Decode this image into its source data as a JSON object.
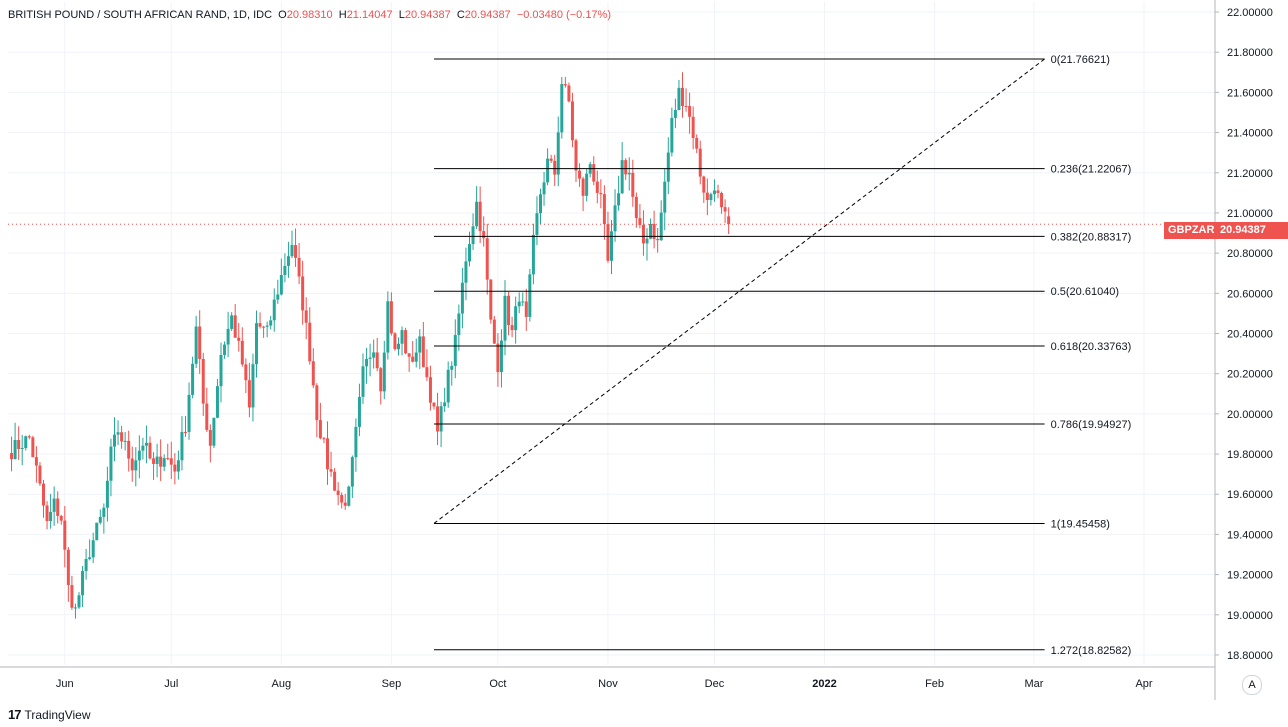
{
  "legend": {
    "symbol": "BRITISH POUND / SOUTH AFRICAN RAND, 1D, IDC",
    "o_label": "O",
    "o": "20.98310",
    "h_label": "H",
    "h": "21.14047",
    "l_label": "L",
    "l": "20.94387",
    "c_label": "C",
    "c": "20.94387",
    "change": "−0.03480 (−0.17%)"
  },
  "price_tag": {
    "ticker": "GBPZAR",
    "price": "20.94387"
  },
  "branding": {
    "logo_text": "TradingView",
    "logo_mark": "17"
  },
  "auto_scale_button": "A",
  "colors": {
    "up": "#26a69a",
    "down": "#ef5350",
    "grid": "#f0f3fa",
    "fib_line": "#000000"
  },
  "chart_data": {
    "type": "candlestick",
    "ylim": [
      18.75,
      22.05
    ],
    "y_ticks": [
      "22.00000",
      "21.80000",
      "21.60000",
      "21.40000",
      "21.20000",
      "21.00000",
      "20.80000",
      "20.60000",
      "20.40000",
      "20.20000",
      "20.00000",
      "19.80000",
      "19.60000",
      "19.40000",
      "19.20000",
      "19.00000",
      "18.80000"
    ],
    "x_ticks": [
      {
        "label": "Jun",
        "day": 31
      },
      {
        "label": "Jul",
        "day": 61
      },
      {
        "label": "Aug",
        "day": 92
      },
      {
        "label": "Sep",
        "day": 123
      },
      {
        "label": "Oct",
        "day": 153
      },
      {
        "label": "Nov",
        "day": 184
      },
      {
        "label": "Dec",
        "day": 214
      },
      {
        "label": "2022",
        "day": 245
      },
      {
        "label": "Feb",
        "day": 276
      },
      {
        "label": "Mar",
        "day": 304
      },
      {
        "label": "Apr",
        "day": 335
      }
    ],
    "x_domain": [
      15,
      355
    ],
    "fib_retracement": {
      "start": {
        "day": 135,
        "value": 19.45458
      },
      "end": {
        "day": 307,
        "value": 21.76621
      },
      "levels": [
        {
          "label": "0(21.76621)",
          "value": 21.76621
        },
        {
          "label": "0.236(21.22067)",
          "value": 21.22067
        },
        {
          "label": "0.382(20.88317)",
          "value": 20.88317
        },
        {
          "label": "0.5(20.61040)",
          "value": 20.6104
        },
        {
          "label": "0.618(20.33763)",
          "value": 20.33763
        },
        {
          "label": "0.786(19.94927)",
          "value": 19.94927
        },
        {
          "label": "1(19.45458)",
          "value": 19.45458
        },
        {
          "label": "1.272(18.82582)",
          "value": 18.82582
        }
      ]
    },
    "anchors": [
      {
        "day": 16,
        "close": 19.82
      },
      {
        "day": 21,
        "close": 19.88
      },
      {
        "day": 23,
        "close": 19.72
      },
      {
        "day": 26,
        "close": 19.45
      },
      {
        "day": 28,
        "close": 19.55
      },
      {
        "day": 30,
        "close": 19.48
      },
      {
        "day": 32,
        "close": 19.13
      },
      {
        "day": 34,
        "close": 19.02
      },
      {
        "day": 36,
        "close": 19.18
      },
      {
        "day": 38,
        "close": 19.32
      },
      {
        "day": 42,
        "close": 19.52
      },
      {
        "day": 44,
        "close": 19.8
      },
      {
        "day": 46,
        "close": 19.92
      },
      {
        "day": 50,
        "close": 19.75
      },
      {
        "day": 53,
        "close": 19.86
      },
      {
        "day": 56,
        "close": 19.73
      },
      {
        "day": 59,
        "close": 19.8
      },
      {
        "day": 62,
        "close": 19.72
      },
      {
        "day": 65,
        "close": 19.95
      },
      {
        "day": 68,
        "close": 20.42
      },
      {
        "day": 70,
        "close": 20.05
      },
      {
        "day": 72,
        "close": 19.85
      },
      {
        "day": 75,
        "close": 20.3
      },
      {
        "day": 78,
        "close": 20.48
      },
      {
        "day": 81,
        "close": 20.25
      },
      {
        "day": 83,
        "close": 20.02
      },
      {
        "day": 85,
        "close": 20.45
      },
      {
        "day": 88,
        "close": 20.4
      },
      {
        "day": 90,
        "close": 20.55
      },
      {
        "day": 93,
        "close": 20.75
      },
      {
        "day": 95,
        "close": 20.85
      },
      {
        "day": 98,
        "close": 20.55
      },
      {
        "day": 100,
        "close": 20.3
      },
      {
        "day": 102,
        "close": 20.0
      },
      {
        "day": 105,
        "close": 19.75
      },
      {
        "day": 107,
        "close": 19.65
      },
      {
        "day": 109,
        "close": 19.55
      },
      {
        "day": 111,
        "close": 19.6
      },
      {
        "day": 113,
        "close": 19.9
      },
      {
        "day": 115,
        "close": 20.2
      },
      {
        "day": 118,
        "close": 20.35
      },
      {
        "day": 120,
        "close": 20.15
      },
      {
        "day": 122,
        "close": 20.55
      },
      {
        "day": 124,
        "close": 20.3
      },
      {
        "day": 126,
        "close": 20.4
      },
      {
        "day": 128,
        "close": 20.25
      },
      {
        "day": 131,
        "close": 20.35
      },
      {
        "day": 134,
        "close": 20.1
      },
      {
        "day": 136,
        "close": 19.9
      },
      {
        "day": 138,
        "close": 20.1
      },
      {
        "day": 141,
        "close": 20.35
      },
      {
        "day": 144,
        "close": 20.78
      },
      {
        "day": 147,
        "close": 21.05
      },
      {
        "day": 149,
        "close": 20.85
      },
      {
        "day": 151,
        "close": 20.45
      },
      {
        "day": 153,
        "close": 20.25
      },
      {
        "day": 155,
        "close": 20.55
      },
      {
        "day": 157,
        "close": 20.4
      },
      {
        "day": 159,
        "close": 20.6
      },
      {
        "day": 161,
        "close": 20.45
      },
      {
        "day": 163,
        "close": 20.85
      },
      {
        "day": 165,
        "close": 21.1
      },
      {
        "day": 167,
        "close": 21.25
      },
      {
        "day": 169,
        "close": 21.2
      },
      {
        "day": 171,
        "close": 21.65
      },
      {
        "day": 173,
        "close": 21.55
      },
      {
        "day": 175,
        "close": 21.2
      },
      {
        "day": 177,
        "close": 21.1
      },
      {
        "day": 179,
        "close": 21.25
      },
      {
        "day": 182,
        "close": 21.05
      },
      {
        "day": 184,
        "close": 20.75
      },
      {
        "day": 186,
        "close": 21.0
      },
      {
        "day": 188,
        "close": 21.25
      },
      {
        "day": 190,
        "close": 21.2
      },
      {
        "day": 192,
        "close": 20.95
      },
      {
        "day": 194,
        "close": 20.85
      },
      {
        "day": 196,
        "close": 20.95
      },
      {
        "day": 198,
        "close": 20.85
      },
      {
        "day": 200,
        "close": 21.15
      },
      {
        "day": 202,
        "close": 21.45
      },
      {
        "day": 204,
        "close": 21.6
      },
      {
        "day": 206,
        "close": 21.55
      },
      {
        "day": 208,
        "close": 21.4
      },
      {
        "day": 210,
        "close": 21.2
      },
      {
        "day": 212,
        "close": 21.05
      },
      {
        "day": 214,
        "close": 21.15
      },
      {
        "day": 216,
        "close": 21.0
      },
      {
        "day": 218,
        "close": 20.94
      }
    ]
  }
}
